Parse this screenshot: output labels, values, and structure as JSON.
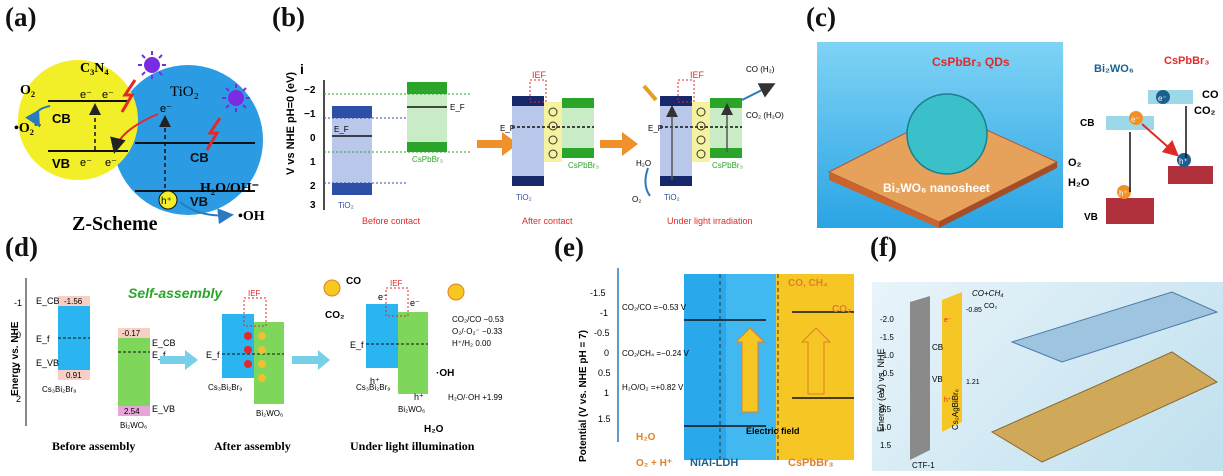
{
  "labels": {
    "a": "(a)",
    "b": "(b)",
    "c": "(c)",
    "d": "(d)",
    "e": "(e)",
    "f": "(f)"
  },
  "panel_a": {
    "c3n4": "C₃N₄",
    "tio2": "TiO₂",
    "o2": "O₂",
    "o2_radical": "•O₂⁻",
    "cb": "CB",
    "vb": "VB",
    "e": "e⁻",
    "h": "h⁺",
    "h2o_oh": "H₂O/OH⁻",
    "oh": "•OH",
    "title": "Z-Scheme"
  },
  "panel_b": {
    "index": "i",
    "ylabel": "V vs NHE pH=0 (eV)",
    "yticks": [
      "−2",
      "−1",
      "0",
      "1",
      "2",
      "3"
    ],
    "tio2": "TiO₂",
    "cspbbr3": "CsPbBr₃",
    "ef": "E_F",
    "ef_left": "E_F",
    "ief": "IEF",
    "co_h2": "CO (H₂)",
    "co2_h2o": "CO₂ (H₂O)",
    "h2o": "H₂O",
    "o2": "O₂",
    "stage1": "Before contact",
    "stage2": "After contact",
    "stage3": "Under light irradiation"
  },
  "panel_c": {
    "qds": "CsPbBr₃ QDs",
    "sheet": "Bi₂WO₆ nanosheet",
    "bi2wo6": "Bi₂WO₆",
    "cspbbr3": "CsPbBr₃",
    "cb": "CB",
    "vb": "VB",
    "e": "e⁻",
    "h": "h⁺",
    "o2": "O₂",
    "h2o": "H₂O",
    "co": "CO",
    "co2": "CO₂"
  },
  "panel_d": {
    "ylabel": "Energy vs. NHE",
    "yticks": [
      "-1",
      "0",
      "1",
      "2"
    ],
    "self_assembly": "Self-assembly",
    "ecb": "E_CB",
    "ef": "E_f",
    "evb": "E_VB",
    "v1": "-1.56",
    "v2": "0.91",
    "v3": "-0.17",
    "v4": "2.54",
    "cs3bi2br9": "Cs₃Bi₂Br₉",
    "bi2wo6": "Bi₂WO₆",
    "ief": "IEF",
    "co": "CO",
    "co2": "CO₂",
    "e": "e⁻",
    "h": "h⁺",
    "oh": "·OH",
    "h2o": "H₂O",
    "pot1": "CO₂/CO −0.53",
    "pot2": "O₂/·O₂⁻ −0.33",
    "pot3": "H⁺/H₂ 0.00",
    "pot4": "H₂O/·OH +1.99",
    "stage1": "Before assembly",
    "stage2": "After assembly",
    "stage3": "Under light illumination"
  },
  "panel_e": {
    "ylabel": "Potential (V vs. NHE pH = 7)",
    "yticks": [
      "-1.5",
      "-1",
      "-0.5",
      "0",
      "0.5",
      "1",
      "1.5"
    ],
    "co2co": "CO₂/CO =−0.53 V",
    "co2ch4": "CO₂/CH₄ =−0.24 V",
    "h2oo2": "H₂O/O₂ =+0.82 V",
    "co_ch4": "CO, CH₄",
    "co2": "CO₂",
    "h2o": "H₂O",
    "o2h": "O₂ + H⁺",
    "field": "Electric field",
    "nial": "NiAl-LDH",
    "cspbbr3": "CsPbBr₃"
  },
  "panel_f": {
    "ylabel": "Energy (eV) vs. NHE",
    "yticks": [
      "-2.0",
      "-1.5",
      "-1.0",
      "-0.5",
      "0",
      "0.5",
      "1.0",
      "1.5"
    ],
    "ctf": "CTF-1",
    "cs": "Cs₂AgBiBr₆",
    "cb": "CB",
    "vb": "VB",
    "e": "e⁻",
    "h": "h⁺",
    "cv1": "-0.85",
    "vv1": "1.21",
    "co_ch4": "CO+CH₄",
    "co2": "CO₂"
  },
  "colors": {
    "panel_b_red": "#e02a2a",
    "self_assembly_green": "#2aa52a",
    "sky": "#2ab4f0",
    "orange_arrow": "#f0902a"
  }
}
